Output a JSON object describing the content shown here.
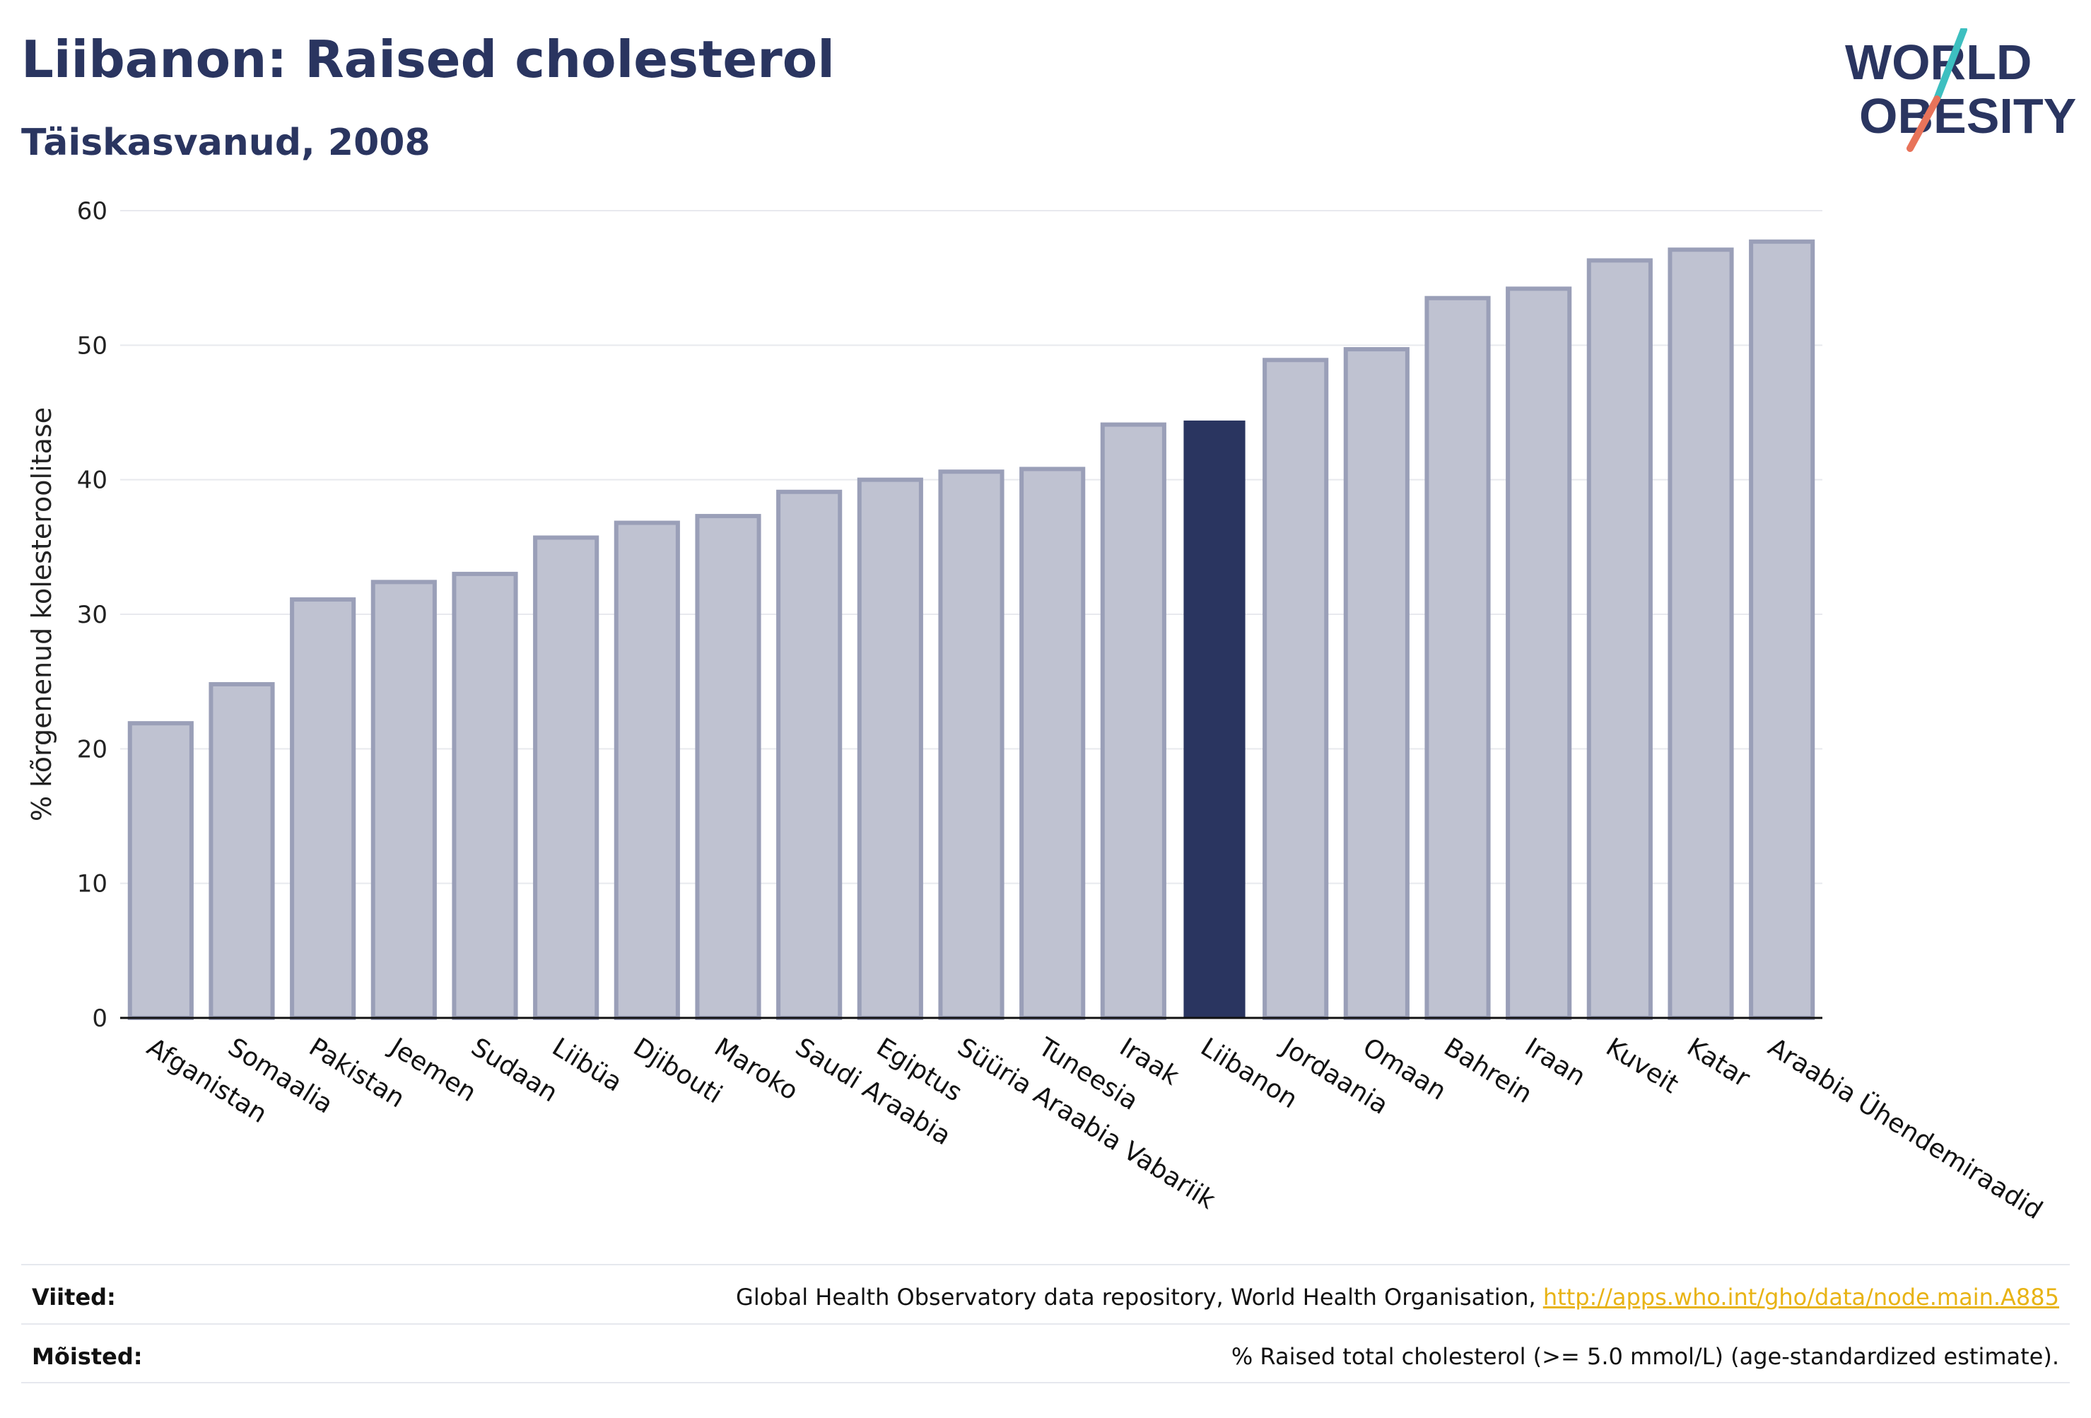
{
  "header": {
    "title": "Liibanon: Raised cholesterol",
    "subtitle": "Täiskasvanud, 2008"
  },
  "logo": {
    "line1": "WORLD",
    "line2": "OBESITY",
    "accent_teal": "#3dbfc0",
    "accent_coral": "#e8735a"
  },
  "colors": {
    "bar": "#bfc2d1",
    "bar_stroke": "#9a9fb8",
    "highlight": "#2a3560",
    "text": "#2a3560"
  },
  "chart_data": {
    "type": "bar",
    "ylabel": "% kõrgenenud kolesteroolitase",
    "ylim": [
      0,
      60
    ],
    "yticks": [
      0,
      10,
      20,
      30,
      40,
      50,
      60
    ],
    "grid": true,
    "highlight": "Liibanon",
    "categories": [
      "Afganistan",
      "Somaalia",
      "Pakistan",
      "Jeemen",
      "Sudaan",
      "Liibüa",
      "Djibouti",
      "Maroko",
      "Saudi Araabia",
      "Egiptus",
      "Süüria Araabia Vabariik",
      "Tuneesia",
      "Iraak",
      "Liibanon",
      "Jordaania",
      "Omaan",
      "Bahrein",
      "Iraan",
      "Kuveit",
      "Katar",
      "Araabia Ühendemiraadid"
    ],
    "values": [
      21.9,
      24.8,
      31.1,
      32.4,
      33.0,
      35.7,
      36.8,
      37.3,
      39.1,
      40.0,
      40.6,
      40.8,
      44.1,
      44.4,
      48.9,
      49.7,
      53.5,
      54.2,
      56.3,
      57.1,
      57.7
    ]
  },
  "footer": {
    "sources_label": "Viited:",
    "sources_text": "Global Health Observatory data repository, World Health Organisation, ",
    "sources_link": "http://apps.who.int/gho/data/node.main.A885",
    "definitions_label": "Mõisted:",
    "definitions_text": "% Raised total cholesterol (>= 5.0 mmol/L) (age-standardized estimate)."
  }
}
